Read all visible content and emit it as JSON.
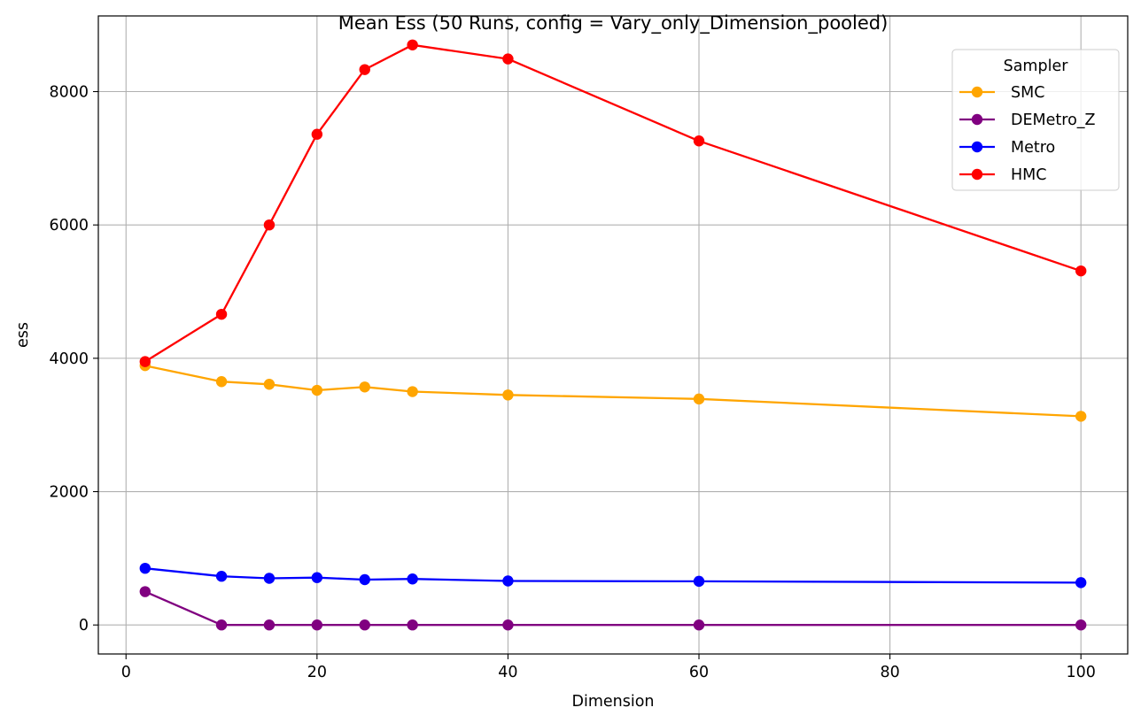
{
  "chart_data": {
    "type": "line",
    "title": "Mean Ess (50 Runs, config = Vary_only_Dimension_pooled)",
    "xlabel": "Dimension",
    "ylabel": "ess",
    "xlim": [
      -2.9,
      104.9
    ],
    "ylim": [
      -435,
      9135
    ],
    "xticks": [
      0,
      20,
      40,
      60,
      80,
      100
    ],
    "yticks": [
      0,
      2000,
      4000,
      6000,
      8000
    ],
    "grid": true,
    "legend": {
      "title": "Sampler",
      "placement": "top-right"
    },
    "x": [
      2,
      10,
      15,
      20,
      25,
      30,
      40,
      60,
      100
    ],
    "series": [
      {
        "name": "SMC",
        "color": "#ffa500",
        "values": [
          3890,
          3650,
          3610,
          3520,
          3570,
          3500,
          3450,
          3390,
          3130
        ]
      },
      {
        "name": "DEMetro_Z",
        "color": "#800080",
        "values": [
          500,
          0,
          0,
          0,
          0,
          0,
          0,
          0,
          0
        ]
      },
      {
        "name": "Metro",
        "color": "#0000ff",
        "values": [
          850,
          730,
          700,
          710,
          680,
          690,
          660,
          655,
          635
        ]
      },
      {
        "name": "HMC",
        "color": "#ff0000",
        "values": [
          3950,
          4660,
          6000,
          7360,
          8330,
          8700,
          8490,
          7260,
          5310
        ]
      }
    ]
  }
}
